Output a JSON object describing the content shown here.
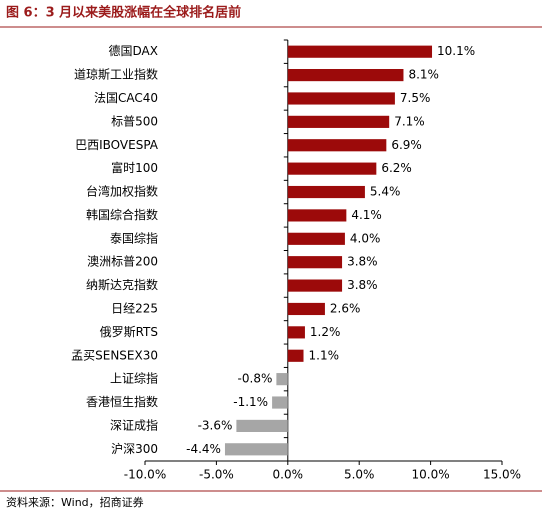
{
  "chart_data": {
    "type": "hbar",
    "title": "图 6：3 月以来美股涨幅在全球排名居前",
    "source": "资料来源：Wind，招商证券",
    "categories": [
      "德国DAX",
      "道琼斯工业指数",
      "法国CAC40",
      "标普500",
      "巴西IBOVESPA",
      "富时100",
      "台湾加权指数",
      "韩国综合指数",
      "泰国综指",
      "澳洲标普200",
      "纳斯达克指数",
      "日经225",
      "俄罗斯RTS",
      "孟买SENSEX30",
      "上证综指",
      "香港恒生指数",
      "深证成指",
      "沪深300"
    ],
    "values": [
      10.1,
      8.1,
      7.5,
      7.1,
      6.9,
      6.2,
      5.4,
      4.1,
      4.0,
      3.8,
      3.8,
      2.6,
      1.2,
      1.1,
      -0.8,
      -1.1,
      -3.6,
      -4.4
    ],
    "value_labels": [
      "10.1%",
      "8.1%",
      "7.5%",
      "7.1%",
      "6.9%",
      "6.2%",
      "5.4%",
      "4.1%",
      "4.0%",
      "3.8%",
      "3.8%",
      "2.6%",
      "1.2%",
      "1.1%",
      "-0.8%",
      "-1.1%",
      "-3.6%",
      "-4.4%"
    ],
    "color": "#9c0a0a",
    "negative_color": "#a6a6a6",
    "xlim": [
      -10,
      15
    ],
    "xticks": [
      {
        "value": -10,
        "label": "-10.0%"
      },
      {
        "value": -5,
        "label": "-5.0%"
      },
      {
        "value": 0,
        "label": "0.0%"
      },
      {
        "value": 5,
        "label": "5.0%"
      },
      {
        "value": 10,
        "label": "10.0%"
      },
      {
        "value": 15,
        "label": "15.0%"
      }
    ]
  }
}
